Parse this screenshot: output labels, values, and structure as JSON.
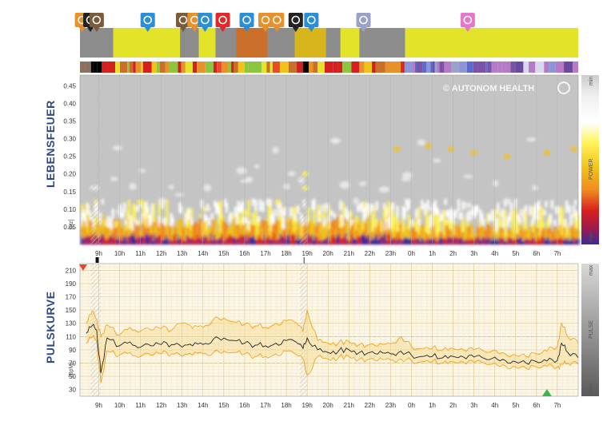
{
  "brand": "© AUTONOM HEALTH",
  "time_labels": [
    "9h",
    "10h",
    "11h",
    "12h",
    "13h",
    "14h",
    "15h",
    "16h",
    "17h",
    "18h",
    "19h",
    "20h",
    "21h",
    "22h",
    "23h",
    "0h",
    "1h",
    "2h",
    "3h",
    "4h",
    "5h",
    "6h",
    "7h"
  ],
  "colors": {
    "activity_gray": "#8c8c8c",
    "activity_yellow": "#e3e329",
    "activity_orange": "#c96f2a",
    "activity_gold": "#d9b51c",
    "heart_line": "#222222",
    "heart_band": "#f3a21c",
    "pin_orange": "#e8902a",
    "pin_blue": "#2a8fd6",
    "pin_red": "#e02a2a",
    "pin_pink": "#e577c9",
    "pin_lavender": "#9aa2c9"
  },
  "activity_pins": [
    {
      "icon": "running-icon",
      "color": "#e8902a",
      "hour": 8.2
    },
    {
      "icon": "no-entry-icon",
      "color": "#222222",
      "hour": 8.6
    },
    {
      "icon": "car-icon",
      "color": "#7a5b3a",
      "hour": 8.9
    },
    {
      "icon": "head-icon",
      "color": "#2a8fd6",
      "hour": 11.35
    },
    {
      "icon": "car-icon",
      "color": "#7a5b3a",
      "hour": 13.05
    },
    {
      "icon": "head-icon",
      "color": "#e8902a",
      "hour": 13.6
    },
    {
      "icon": "meeting-icon",
      "color": "#2a8fd6",
      "hour": 14.1
    },
    {
      "icon": "question-icon",
      "color": "#e02a2a",
      "hour": 14.95
    },
    {
      "icon": "head-icon",
      "color": "#2a8fd6",
      "hour": 16.1
    },
    {
      "icon": "head-icon",
      "color": "#e8902a",
      "hour": 17.0
    },
    {
      "icon": "running-icon",
      "color": "#e8902a",
      "hour": 17.55
    },
    {
      "icon": "no-entry-icon",
      "color": "#222222",
      "hour": 18.45
    },
    {
      "icon": "meeting-icon",
      "color": "#2a8fd6",
      "hour": 19.2
    },
    {
      "icon": "screen-icon",
      "color": "#9aa2c9",
      "hour": 21.7
    },
    {
      "icon": "bed-icon",
      "color": "#e577c9",
      "hour": 2.7
    }
  ],
  "lebensfeuer": {
    "label": "LEBENSFEUER",
    "unit": "[Hz]",
    "y_ticks": [
      "0.45",
      "0.40",
      "0.35",
      "0.30",
      "0.25",
      "0.20",
      "0.15",
      "0.10",
      "0.05"
    ],
    "scale_top": "min",
    "scale_mid": "POWER",
    "scale_bottom": "max"
  },
  "pulskurve": {
    "label": "PULSKURVE",
    "unit": "[BpM]",
    "y_ticks": [
      "210",
      "190",
      "170",
      "150",
      "130",
      "110",
      "90",
      "70",
      "50",
      "30"
    ],
    "scale_top": "max",
    "scale_mid": "PULSE",
    "scale_bottom": "min"
  },
  "chart_data": [
    {
      "type": "heatmap",
      "title": "",
      "ylabel": "LEBENSFEUER [Hz]",
      "xlabel": "",
      "x_ticks": [
        "9h",
        "10h",
        "11h",
        "12h",
        "13h",
        "14h",
        "15h",
        "16h",
        "17h",
        "18h",
        "19h",
        "20h",
        "21h",
        "22h",
        "23h",
        "0h",
        "1h",
        "2h",
        "3h",
        "4h",
        "5h",
        "6h",
        "7h"
      ],
      "ylim": [
        0,
        0.48
      ],
      "y_ticks": [
        0.05,
        0.1,
        0.15,
        0.2,
        0.25,
        0.3,
        0.35,
        0.4,
        0.45
      ],
      "colorscale_label": "POWER",
      "colorscale_ends": [
        "min",
        "max"
      ]
    },
    {
      "type": "line",
      "title": "",
      "ylabel": "PULSKURVE [BpM]",
      "x_ticks": [
        "9h",
        "10h",
        "11h",
        "12h",
        "13h",
        "14h",
        "15h",
        "16h",
        "17h",
        "18h",
        "19h",
        "20h",
        "21h",
        "22h",
        "23h",
        "0h",
        "1h",
        "2h",
        "3h",
        "4h",
        "5h",
        "6h",
        "7h"
      ],
      "ylim": [
        20,
        220
      ],
      "y_ticks": [
        30,
        50,
        70,
        90,
        110,
        130,
        150,
        170,
        190,
        210
      ],
      "x_hours": [
        8.4,
        8.7,
        8.9,
        9.1,
        9.4,
        10,
        10.5,
        11,
        11.5,
        12,
        12.5,
        13,
        13.5,
        14,
        14.5,
        15,
        15.5,
        16,
        16.5,
        17,
        17.5,
        18,
        18.5,
        18.8,
        19,
        19.5,
        20,
        20.5,
        21,
        21.5,
        22,
        22.5,
        23,
        23.5,
        24,
        24.5,
        25,
        25.5,
        26,
        26.5,
        27,
        27.5,
        28,
        28.5,
        29,
        29.5,
        30,
        30.5,
        31,
        31.2,
        31.5,
        32
      ],
      "series": [
        {
          "values": [
            115,
            127,
            120,
            55,
            108,
            96,
            102,
            94,
            96,
            98,
            98,
            94,
            96,
            98,
            106,
            108,
            104,
            100,
            97,
            96,
            100,
            104,
            101,
            92,
            108,
            90,
            86,
            88,
            90,
            86,
            86,
            88,
            84,
            88,
            82,
            80,
            80,
            78,
            80,
            79,
            79,
            77,
            79,
            74,
            72,
            70,
            72,
            73,
            74,
            100,
            86,
            78
          ]
        },
        {
          "values": [
            130,
            148,
            136,
            110,
            128,
            112,
            124,
            118,
            120,
            122,
            120,
            130,
            122,
            124,
            136,
            138,
            132,
            128,
            126,
            124,
            130,
            134,
            130,
            118,
            150,
            104,
            100,
            100,
            102,
            98,
            98,
            100,
            99,
            110,
            95,
            92,
            92,
            90,
            92,
            90,
            90,
            88,
            90,
            84,
            82,
            80,
            84,
            88,
            95,
            130,
            110,
            100
          ]
        },
        {
          "values": [
            100,
            110,
            104,
            40,
            88,
            82,
            86,
            80,
            82,
            84,
            84,
            80,
            82,
            84,
            86,
            88,
            86,
            84,
            80,
            80,
            84,
            88,
            82,
            76,
            52,
            80,
            76,
            78,
            80,
            76,
            76,
            78,
            75,
            76,
            74,
            72,
            72,
            70,
            72,
            71,
            71,
            70,
            70,
            66,
            64,
            62,
            64,
            65,
            64,
            68,
            70,
            68
          ]
        }
      ],
      "annotations": [
        {
          "type": "triangle",
          "color": "#e8462a",
          "hour": 8.25,
          "at": "top"
        },
        {
          "type": "triangle",
          "color": "#3cb44b",
          "hour": 30.5,
          "at": "bottom"
        }
      ]
    }
  ]
}
